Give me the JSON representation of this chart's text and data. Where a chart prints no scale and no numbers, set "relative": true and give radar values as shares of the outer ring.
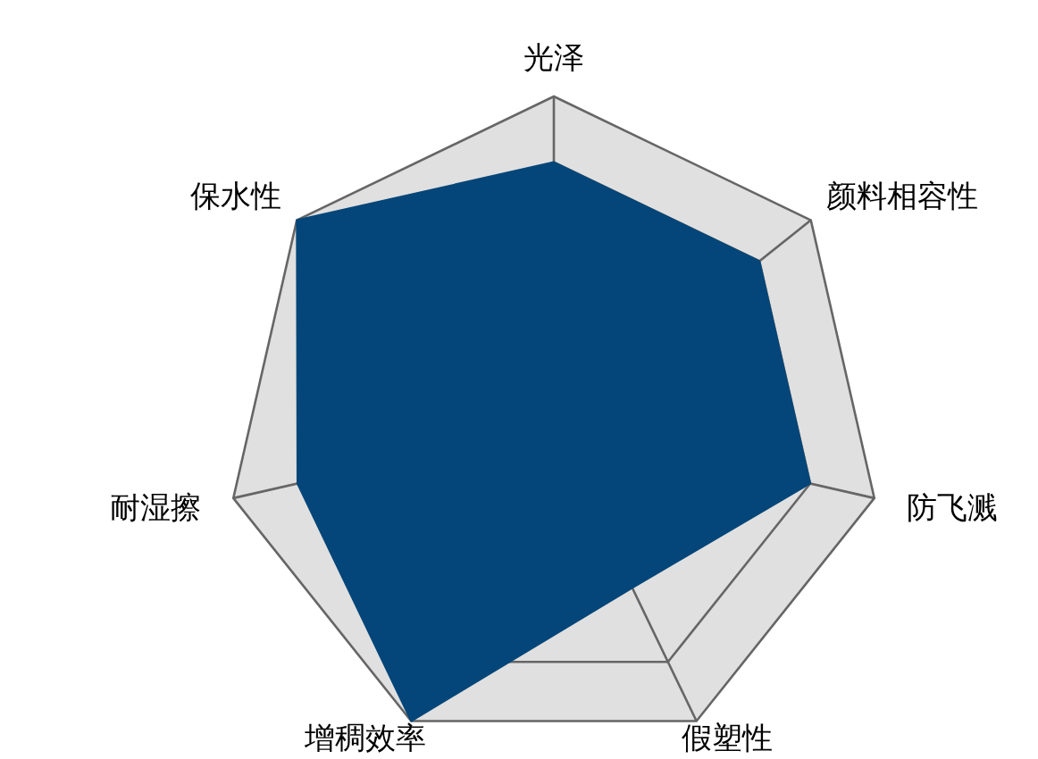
{
  "chart_data": {
    "type": "radar",
    "relative": true,
    "categories": [
      "光泽",
      "颜料相容性",
      "防飞溅",
      "假塑性",
      "增稠效率",
      "耐湿擦",
      "保水性"
    ],
    "series": [
      {
        "color": "#044679",
        "values": [
          0.8,
          0.8,
          0.8,
          0.55,
          1,
          0.8,
          1
        ]
      }
    ]
  }
}
